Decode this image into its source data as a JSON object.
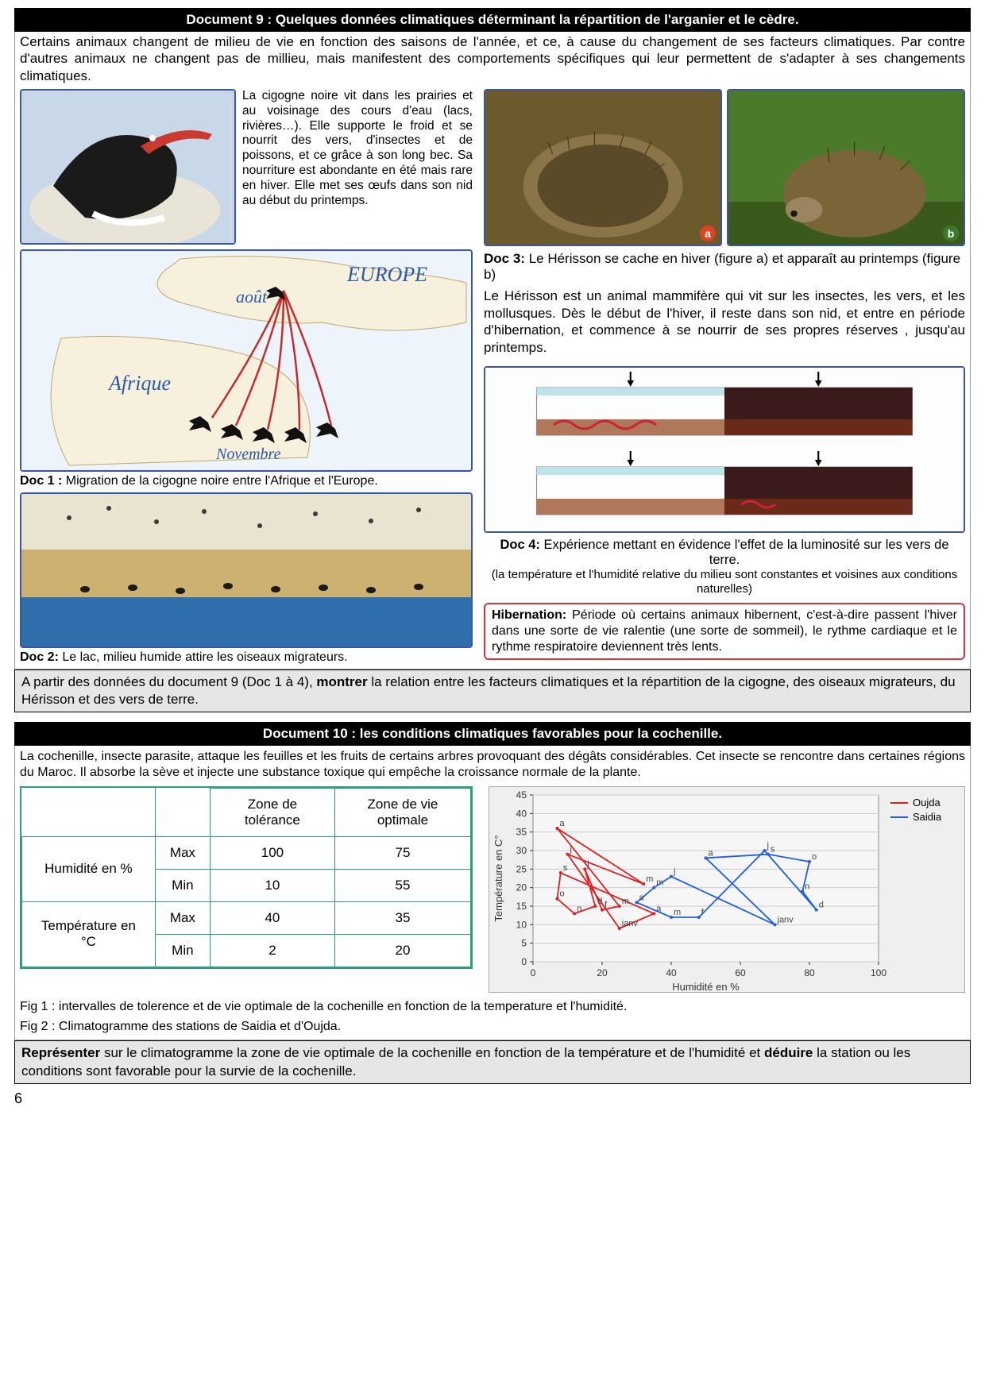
{
  "doc9": {
    "title": "Document 9 : Quelques données climatiques déterminant la répartition de l'arganier et le cèdre.",
    "intro": "Certains animaux changent de milieu de vie en fonction des saisons de l'année, et ce, à cause du changement de ses facteurs climatiques. Par contre d'autres animaux ne changent pas de millieu, mais manifestent des comportements spécifiques qui leur permettent de s'adapter à ses changements climatiques.",
    "stork_text": "La cigogne noire vit dans les prairies et au voisinage des cours d'eau (lacs, rivières…). Elle supporte le froid et se nourrit des vers, d'insectes et de poissons, et ce grâce à son long bec. Sa nourriture est abondante en été mais rare en hiver. Elle met ses œufs dans son nid au début du printemps.",
    "map": {
      "europe": "EUROPE",
      "aout": "août",
      "afrique": "Afrique",
      "novembre": "Novembre"
    },
    "doc1_label": "Doc 1 :",
    "doc1_caption": " Migration de la cigogne noire entre l'Afrique et l'Europe.",
    "doc2_label": "Doc 2:",
    "doc2_caption": " Le lac, milieu humide attire les oiseaux migrateurs.",
    "hedge_a": "a",
    "hedge_b": "b",
    "doc3_label": "Doc 3:",
    "doc3_title": " Le Hérisson se cache en hiver (figure a) et apparaît au printemps (figure b)",
    "doc3_body": "Le Hérisson est un animal mammifère qui vit sur les insectes, les vers, et les mollusques. Dès le début de l'hiver, il reste dans son nid, et entre en période d'hibernation, et commence à se nourrir de ses propres réserves , jusqu'au printemps.",
    "doc4_label": "Doc 4:",
    "doc4_title": " Expérience mettant en évidence l'effet de la luminosité sur les vers de terre.",
    "doc4_sub": "(la température et l'humidité relative du milieu sont constantes et voisines aux conditions naturelles)",
    "hibernation_label": "Hibernation:",
    "hibernation_body": " Période où certains animaux hibernent, c'est-à-dire passent l'hiver dans une sorte de vie ralentie (une sorte de sommeil), le rythme cardiaque et le rythme respiratoire deviennent très lents.",
    "task_pre": "A partir des données du document 9 (Doc 1 à 4), ",
    "task_bold": "montrer",
    "task_post": " la relation entre les facteurs climatiques et la répartition de la cigogne, des oiseaux migrateurs, du Hérisson et des vers de terre."
  },
  "doc10": {
    "title": "Document 10 : les conditions climatiques favorables pour la cochenille.",
    "intro": "La cochenille, insecte parasite, attaque les feuilles et les fruits de certains arbres provoquant des dégâts considérables. Cet insecte se rencontre dans certaines régions du Maroc. Il absorbe la sève et injecte une substance toxique qui empêche la croissance normale de la plante.",
    "table": {
      "headers": [
        "",
        "",
        "Zone de tolérance",
        "Zone de vie optimale"
      ],
      "rows": [
        {
          "param": "Humidité en %",
          "sub": "Max",
          "tol": "100",
          "opt": "75"
        },
        {
          "param": "",
          "sub": "Min",
          "tol": "10",
          "opt": "55"
        },
        {
          "param": "Température en °C",
          "sub": "Max",
          "tol": "40",
          "opt": "35"
        },
        {
          "param": "",
          "sub": "Min",
          "tol": "2",
          "opt": "20"
        }
      ],
      "humidite_label": "Humidité en %",
      "temperature_label": "Température en °C",
      "max": "Max",
      "min": "Min",
      "border_color": "#2b9f7a"
    },
    "chart": {
      "xlabel": "Humidité en %",
      "ylabel": "Température en C°",
      "xlim": [
        0,
        100
      ],
      "xtick_step": 20,
      "ylim": [
        0,
        45
      ],
      "ytick_step": 5,
      "background": "#efefef",
      "grid_color": "#cccccc",
      "series": {
        "oujda": {
          "label": "Oujda",
          "color": "#e02020",
          "points": [
            {
              "m": "j",
              "x": 15,
              "y": 25
            },
            {
              "m": "f",
              "x": 20,
              "y": 14
            },
            {
              "m": "m",
              "x": 25,
              "y": 15
            },
            {
              "m": "a",
              "x": 7,
              "y": 36
            },
            {
              "m": "m",
              "x": 32,
              "y": 21
            },
            {
              "m": "j",
              "x": 10,
              "y": 29
            },
            {
              "m": "janv",
              "x": 25,
              "y": 9
            },
            {
              "m": "a",
              "x": 35,
              "y": 13
            },
            {
              "m": "s",
              "x": 8,
              "y": 24
            },
            {
              "m": "o",
              "x": 7,
              "y": 17
            },
            {
              "m": "n",
              "x": 12,
              "y": 13
            },
            {
              "m": "d",
              "x": 18,
              "y": 15
            }
          ]
        },
        "saidia": {
          "label": "Saidia",
          "color": "#2060e0",
          "points": [
            {
              "m": "j",
              "x": 67,
              "y": 30
            },
            {
              "m": "f",
              "x": 48,
              "y": 12
            },
            {
              "m": "m",
              "x": 40,
              "y": 12
            },
            {
              "m": "a",
              "x": 30,
              "y": 16
            },
            {
              "m": "m",
              "x": 35,
              "y": 20
            },
            {
              "m": "j",
              "x": 40,
              "y": 23
            },
            {
              "m": "janv",
              "x": 70,
              "y": 10
            },
            {
              "m": "a",
              "x": 50,
              "y": 28
            },
            {
              "m": "s",
              "x": 68,
              "y": 29
            },
            {
              "m": "o",
              "x": 80,
              "y": 27
            },
            {
              "m": "n",
              "x": 78,
              "y": 19
            },
            {
              "m": "d",
              "x": 82,
              "y": 14
            }
          ]
        }
      }
    },
    "fig1": "Fig 1 : intervalles de tolerence et de vie optimale de la cochenille en fonction de la temperature et l'humidité.",
    "fig2": "Fig 2 : Climatogramme des stations de Saidia et d'Oujda.",
    "task_b1": "Représenter",
    "task_mid": " sur le climatogramme la zone de vie optimale de la cochenille en fonction de la température et de l'humidité et ",
    "task_b2": "déduire",
    "task_post": " la station ou les conditions sont favorable pour la survie de la cochenille."
  },
  "page_num": "6"
}
